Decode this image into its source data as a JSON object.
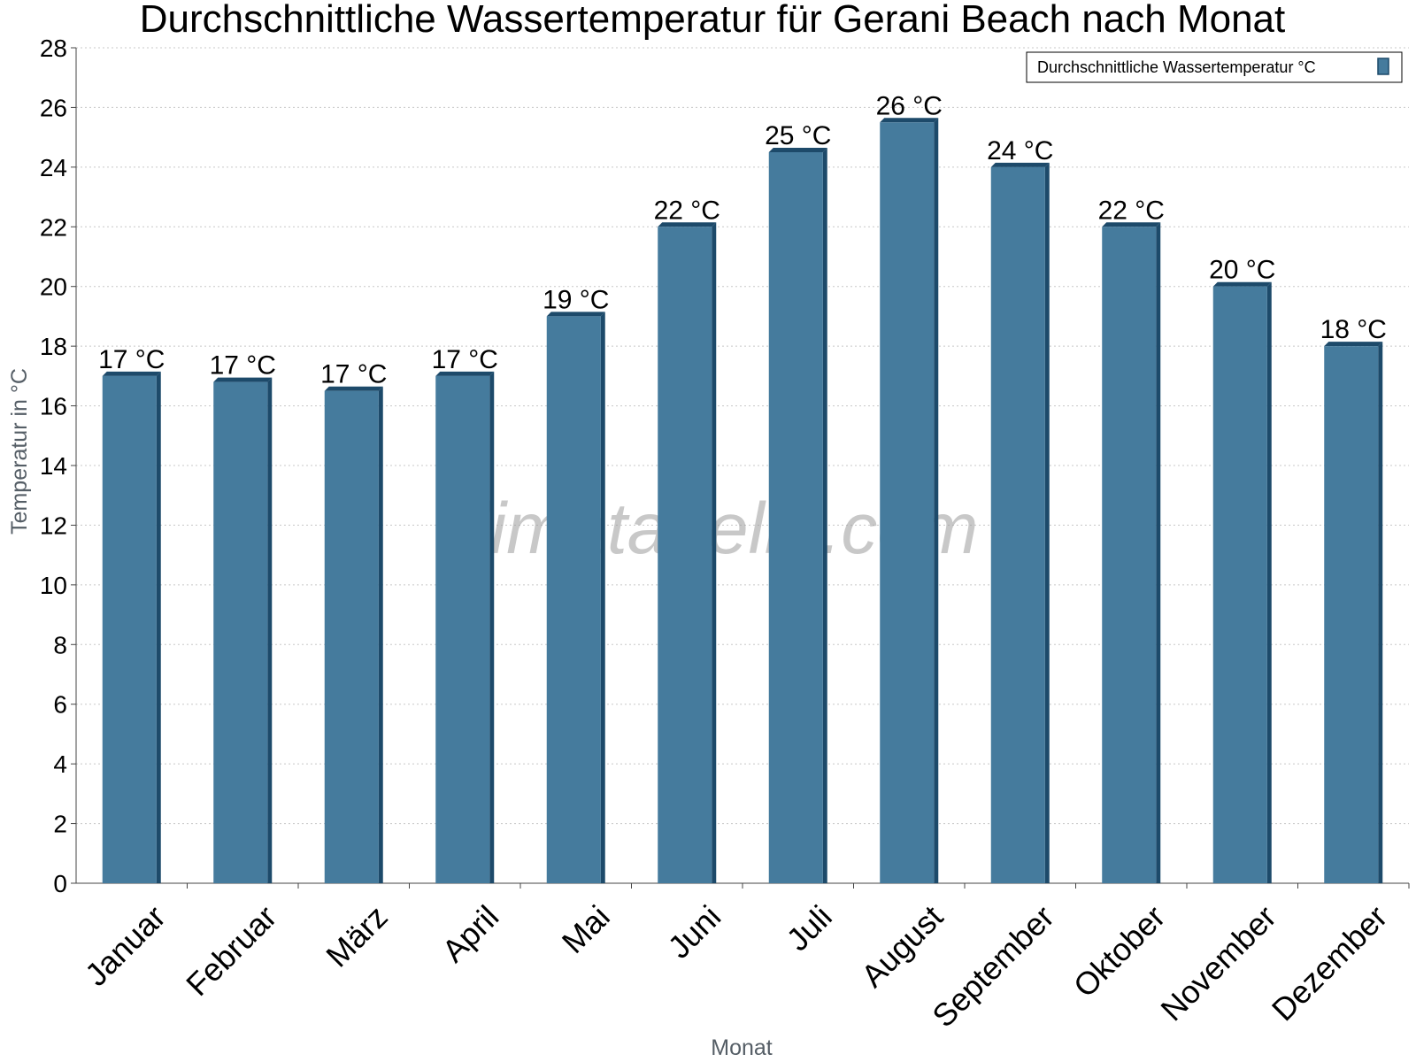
{
  "chart_data": {
    "type": "bar",
    "title": "Durchschnittliche Wassertemperatur für Gerani Beach nach Monat",
    "xlabel": "Monat",
    "ylabel": "Temperatur in °C",
    "categories": [
      "Januar",
      "Februar",
      "März",
      "April",
      "Mai",
      "Juni",
      "Juli",
      "August",
      "September",
      "Oktober",
      "November",
      "Dezember"
    ],
    "series": [
      {
        "name": "Durchschnittliche Wassertemperatur °C",
        "values": [
          17.0,
          16.8,
          16.5,
          17.0,
          19.0,
          22.0,
          24.5,
          25.5,
          24.0,
          22.0,
          20.0,
          18.0
        ],
        "data_labels": [
          "17 °C",
          "17 °C",
          "17 °C",
          "17 °C",
          "19 °C",
          "22 °C",
          "25 °C",
          "26 °C",
          "24 °C",
          "22 °C",
          "20 °C",
          "18 °C"
        ]
      }
    ],
    "ylim": [
      0,
      28
    ],
    "yticks": [
      0,
      2,
      4,
      6,
      8,
      10,
      12,
      14,
      16,
      18,
      20,
      22,
      24,
      26,
      28
    ],
    "grid": true,
    "legend_position": "top-right",
    "colors": {
      "bar": "#457b9d",
      "bar_dark": "#1d4a6a"
    },
    "watermark": "klimatabelle.com"
  }
}
